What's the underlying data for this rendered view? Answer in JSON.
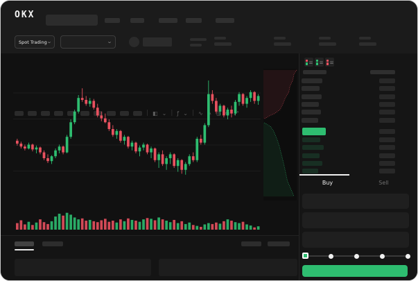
{
  "colors": {
    "up": "#2ebd70",
    "down": "#e8515f",
    "accent_button": "#2ebd70",
    "bid_row_tint": "rgba(46,189,112,0.16)",
    "placeholder": "#2c2c2c",
    "text": "#eaeaea",
    "muted": "#6e6e6e"
  },
  "topbar": {
    "logo_text": "OKX",
    "nav_placeholder_count": 5
  },
  "subheader": {
    "market_type": "Spot Trading",
    "stat_group_count": 4
  },
  "toolbar": {
    "interval_placeholder_count": 10,
    "icons": [
      {
        "name": "divider",
        "glyph": "|"
      },
      {
        "name": "candle-style-icon",
        "glyph": "◧"
      },
      {
        "name": "chevron-down-icon",
        "glyph": "⌄"
      },
      {
        "name": "divider",
        "glyph": "|"
      },
      {
        "name": "indicators-icon",
        "glyph": "ƒ"
      },
      {
        "name": "chevron-down-icon",
        "glyph": "⌄"
      },
      {
        "name": "divider",
        "glyph": "|"
      },
      {
        "name": "line-tool-icon",
        "glyph": "∿"
      },
      {
        "name": "draw-tool-icon",
        "glyph": "✎"
      },
      {
        "name": "screenshot-icon",
        "glyph": "◎"
      },
      {
        "name": "settings-icon",
        "glyph": "⚙"
      },
      {
        "name": "fullscreen-icon",
        "glyph": "⤢"
      }
    ]
  },
  "chart_data": {
    "type": "candlestick",
    "points": 64,
    "ylim": [
      0,
      105
    ],
    "axis_labels_visible": false,
    "ohlc": [
      [
        38,
        40,
        33,
        35
      ],
      [
        35,
        37,
        30,
        32
      ],
      [
        32,
        34,
        28,
        30
      ],
      [
        30,
        36,
        29,
        34
      ],
      [
        34,
        35,
        27,
        29
      ],
      [
        29,
        33,
        25,
        31
      ],
      [
        31,
        32,
        24,
        26
      ],
      [
        26,
        28,
        18,
        20
      ],
      [
        20,
        24,
        15,
        17
      ],
      [
        17,
        23,
        14,
        22
      ],
      [
        22,
        30,
        20,
        28
      ],
      [
        28,
        34,
        25,
        32
      ],
      [
        32,
        33,
        24,
        26
      ],
      [
        26,
        44,
        25,
        42
      ],
      [
        42,
        60,
        40,
        57
      ],
      [
        57,
        70,
        55,
        68
      ],
      [
        68,
        85,
        66,
        82
      ],
      [
        82,
        92,
        78,
        80
      ],
      [
        80,
        84,
        74,
        76
      ],
      [
        76,
        82,
        73,
        79
      ],
      [
        79,
        81,
        70,
        72
      ],
      [
        72,
        76,
        62,
        64
      ],
      [
        64,
        68,
        58,
        61
      ],
      [
        61,
        66,
        56,
        57
      ],
      [
        57,
        60,
        48,
        50
      ],
      [
        50,
        54,
        42,
        44
      ],
      [
        44,
        50,
        40,
        48
      ],
      [
        48,
        49,
        36,
        38
      ],
      [
        38,
        44,
        34,
        42
      ],
      [
        42,
        43,
        30,
        32
      ],
      [
        32,
        38,
        28,
        36
      ],
      [
        36,
        37,
        25,
        27
      ],
      [
        27,
        33,
        22,
        31
      ],
      [
        31,
        36,
        28,
        34
      ],
      [
        34,
        35,
        24,
        26
      ],
      [
        26,
        32,
        20,
        30
      ],
      [
        30,
        31,
        16,
        18
      ],
      [
        18,
        26,
        10,
        24
      ],
      [
        24,
        28,
        12,
        14
      ],
      [
        14,
        22,
        8,
        20
      ],
      [
        20,
        26,
        14,
        24
      ],
      [
        24,
        25,
        10,
        12
      ],
      [
        12,
        20,
        6,
        18
      ],
      [
        18,
        19,
        4,
        8
      ],
      [
        8,
        16,
        3,
        14
      ],
      [
        14,
        24,
        12,
        22
      ],
      [
        22,
        26,
        16,
        18
      ],
      [
        18,
        42,
        16,
        40
      ],
      [
        40,
        44,
        34,
        36
      ],
      [
        36,
        56,
        34,
        54
      ],
      [
        54,
        100,
        52,
        86
      ],
      [
        86,
        90,
        76,
        79
      ],
      [
        79,
        82,
        66,
        68
      ],
      [
        68,
        76,
        64,
        74
      ],
      [
        74,
        75,
        62,
        64
      ],
      [
        64,
        72,
        60,
        70
      ],
      [
        70,
        74,
        62,
        66
      ],
      [
        66,
        80,
        64,
        78
      ],
      [
        78,
        88,
        74,
        86
      ],
      [
        86,
        87,
        74,
        76
      ],
      [
        76,
        84,
        72,
        82
      ],
      [
        82,
        90,
        78,
        88
      ],
      [
        88,
        89,
        76,
        79
      ],
      [
        79,
        86,
        75,
        84
      ]
    ],
    "volume": [
      35,
      50,
      28,
      42,
      25,
      38,
      55,
      40,
      30,
      45,
      70,
      85,
      75,
      90,
      80,
      65,
      55,
      60,
      48,
      52,
      45,
      40,
      50,
      58,
      42,
      48,
      38,
      55,
      45,
      60,
      52,
      48,
      42,
      55,
      62,
      58,
      50,
      65,
      55,
      48,
      40,
      52,
      35,
      45,
      30,
      38,
      25,
      20,
      15,
      28,
      35,
      30,
      38,
      32,
      45,
      55,
      48,
      40,
      35,
      42,
      28,
      22,
      12,
      18
    ],
    "grid": true,
    "depth": {
      "type": "area",
      "asks_curve": [
        [
          1.0,
          0.01
        ],
        [
          0.92,
          0.04
        ],
        [
          0.88,
          0.09
        ],
        [
          0.8,
          0.13
        ],
        [
          0.76,
          0.18
        ],
        [
          0.66,
          0.22
        ],
        [
          0.58,
          0.27
        ],
        [
          0.5,
          0.31
        ],
        [
          0.34,
          0.34
        ],
        [
          0.16,
          0.36
        ],
        [
          0.03,
          0.38
        ]
      ],
      "bids_curve": [
        [
          0.03,
          0.41
        ],
        [
          0.22,
          0.44
        ],
        [
          0.32,
          0.48
        ],
        [
          0.4,
          0.53
        ],
        [
          0.47,
          0.58
        ],
        [
          0.53,
          0.64
        ],
        [
          0.6,
          0.71
        ],
        [
          0.66,
          0.78
        ],
        [
          0.72,
          0.85
        ],
        [
          0.82,
          0.91
        ],
        [
          0.92,
          0.97
        ]
      ]
    }
  },
  "orderbook": {
    "view_toggles": [
      {
        "name": "book-combined-icon",
        "top": "down",
        "bottom": "up"
      },
      {
        "name": "book-bids-icon",
        "top": "up",
        "bottom": "up"
      },
      {
        "name": "book-asks-icon",
        "top": "down",
        "bottom": "down"
      }
    ],
    "header": {
      "left_width": 34,
      "right_width": 36
    },
    "asks": {
      "left_widths": [
        30,
        26,
        29,
        25,
        28,
        24
      ],
      "right_width": 23
    },
    "last_price_bar": {
      "width": 34,
      "has_amount_bar": true
    },
    "bids": {
      "left_widths": [
        26,
        31,
        25,
        29,
        23
      ],
      "right_width": 23
    }
  },
  "trade_panel": {
    "tabs": [
      {
        "label": "Buy",
        "active": true
      },
      {
        "label": "Sell",
        "active": false
      }
    ],
    "input_rows": 3,
    "slider": {
      "steps": 5,
      "active_index": 0
    },
    "submit_label": ""
  }
}
